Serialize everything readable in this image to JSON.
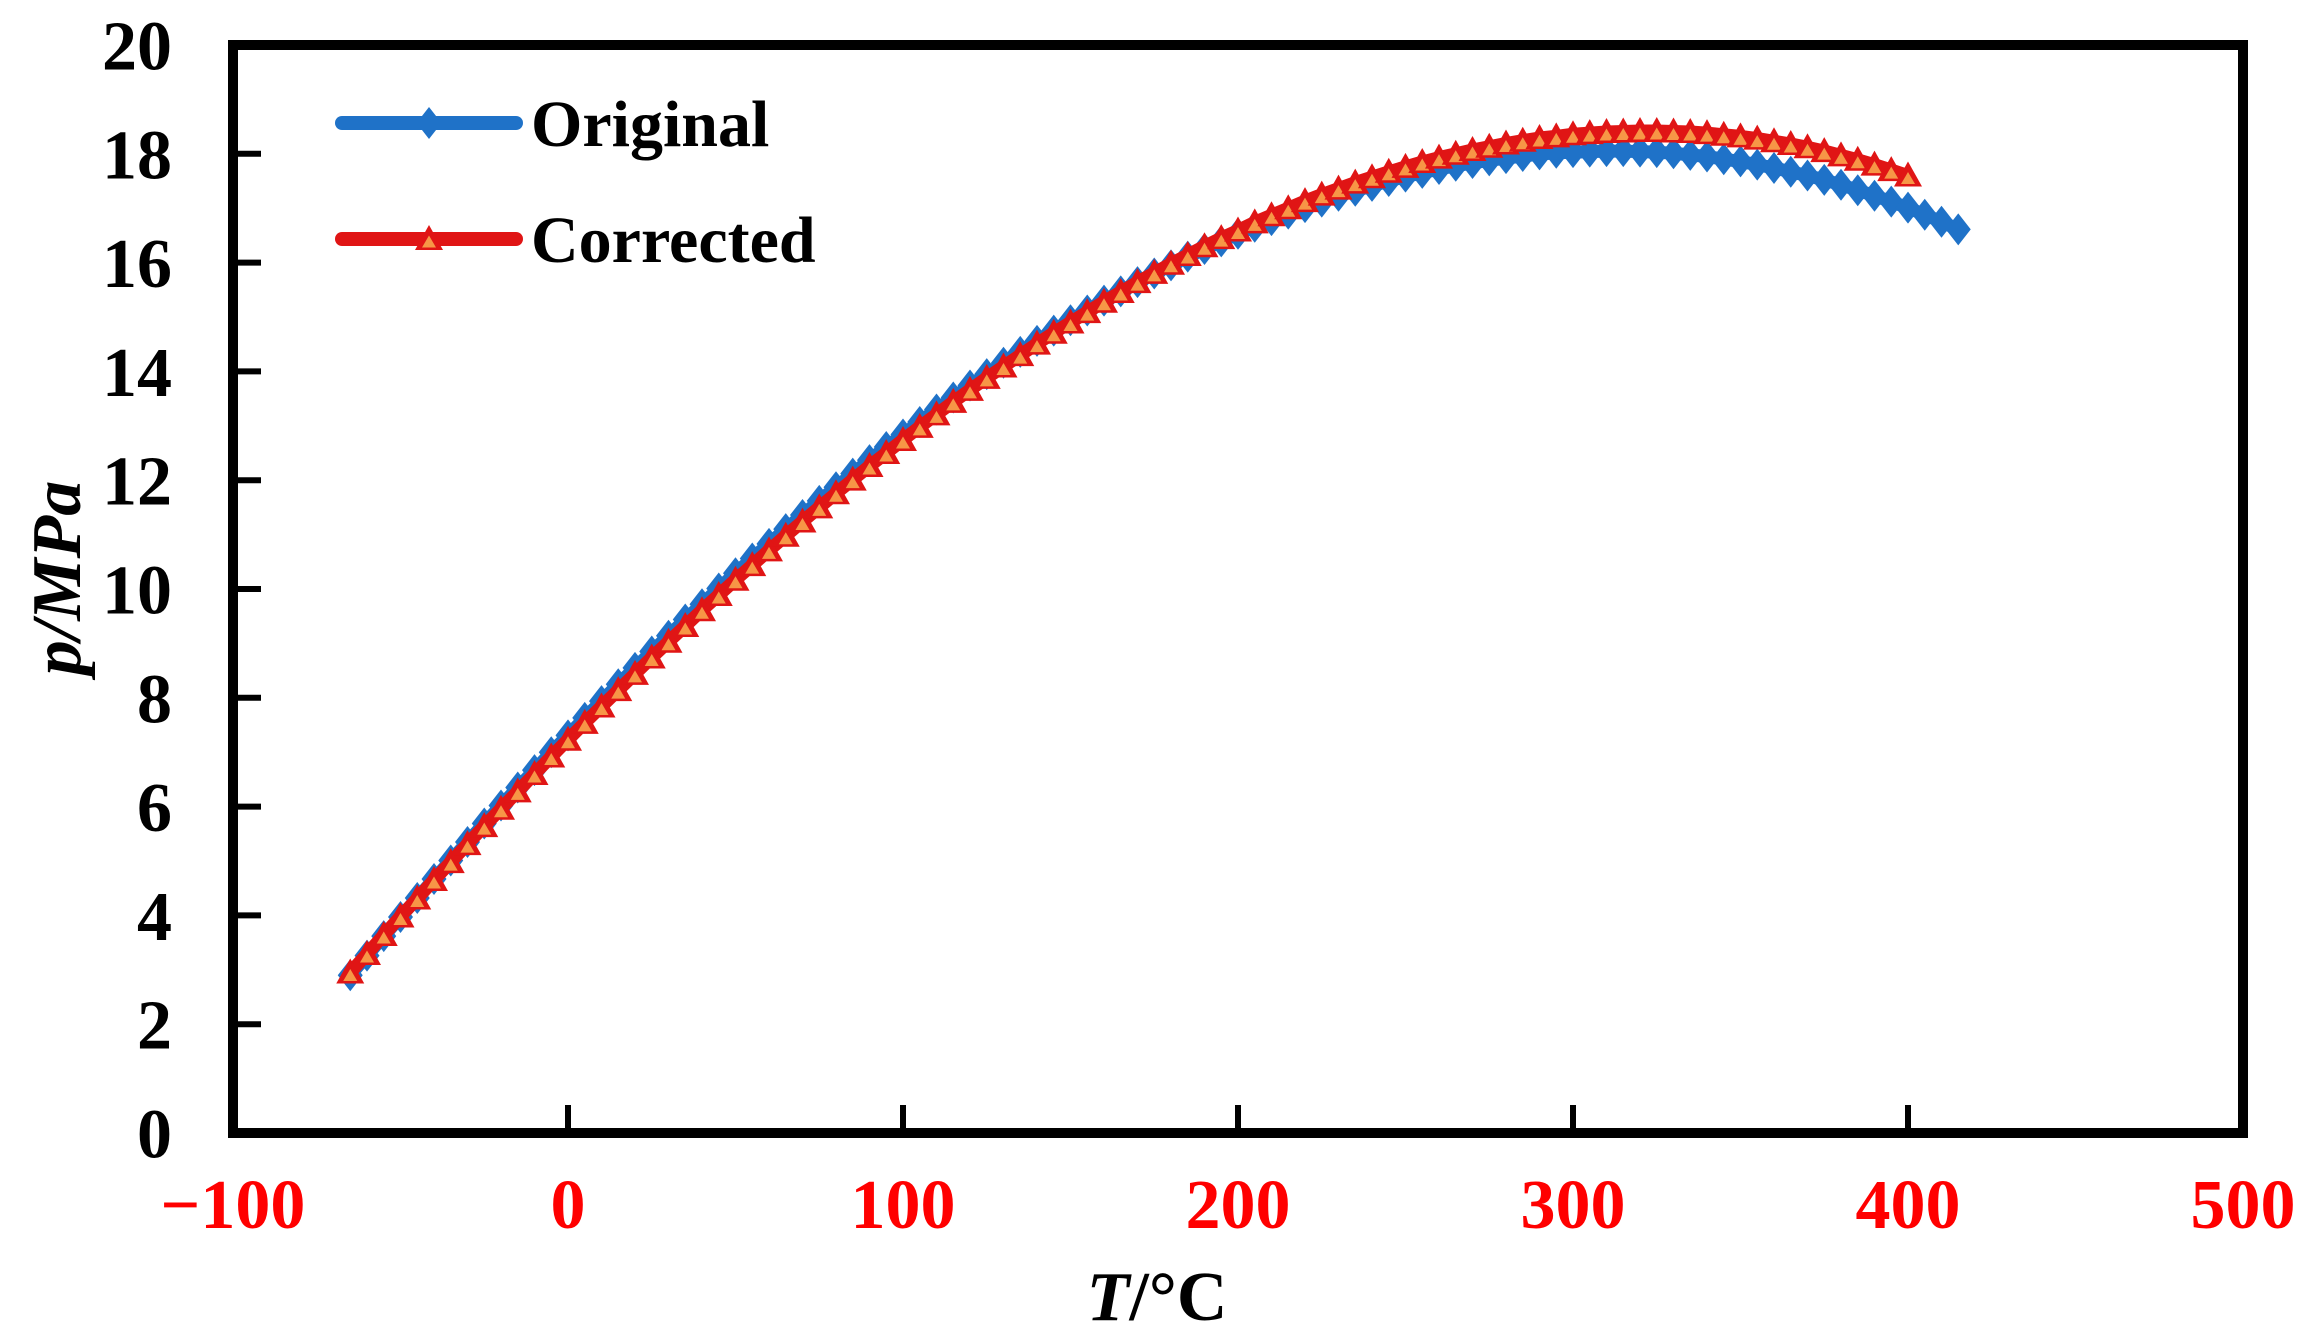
{
  "chart_data": {
    "type": "line",
    "title": "",
    "xlabel_var": "T",
    "xlabel_rest": "/°C",
    "ylabel_var": "p",
    "ylabel_rest": "/MPa",
    "xlim": [
      -100,
      500
    ],
    "ylim": [
      0,
      20
    ],
    "x_ticks": [
      -100,
      0,
      100,
      200,
      300,
      400,
      500
    ],
    "y_ticks": [
      0,
      2,
      4,
      6,
      8,
      10,
      12,
      14,
      16,
      18,
      20
    ],
    "x_tick_label_color": "#ff0000",
    "y_tick_label_color": "#000000",
    "axis_color": "#000000",
    "grid": false,
    "legend_position": "top-left-inside",
    "series": [
      {
        "name": "Original",
        "color": "#1f72c8",
        "marker": "diamond",
        "points": [
          [
            -65,
            2.9
          ],
          [
            -60,
            3.26
          ],
          [
            -55,
            3.62
          ],
          [
            -50,
            3.97
          ],
          [
            -45,
            4.32
          ],
          [
            -40,
            4.67
          ],
          [
            -35,
            5.01
          ],
          [
            -30,
            5.35
          ],
          [
            -25,
            5.69
          ],
          [
            -20,
            6.02
          ],
          [
            -15,
            6.35
          ],
          [
            -10,
            6.67
          ],
          [
            -5,
            7.0
          ],
          [
            0,
            7.31
          ],
          [
            5,
            7.63
          ],
          [
            10,
            7.94
          ],
          [
            15,
            8.25
          ],
          [
            20,
            8.55
          ],
          [
            25,
            8.85
          ],
          [
            30,
            9.14
          ],
          [
            35,
            9.44
          ],
          [
            40,
            9.72
          ],
          [
            45,
            10.01
          ],
          [
            50,
            10.29
          ],
          [
            55,
            10.56
          ],
          [
            60,
            10.83
          ],
          [
            65,
            11.1
          ],
          [
            70,
            11.36
          ],
          [
            75,
            11.62
          ],
          [
            80,
            11.87
          ],
          [
            85,
            12.12
          ],
          [
            90,
            12.37
          ],
          [
            95,
            12.61
          ],
          [
            100,
            12.84
          ],
          [
            105,
            13.07
          ],
          [
            110,
            13.3
          ],
          [
            115,
            13.52
          ],
          [
            120,
            13.74
          ],
          [
            125,
            13.95
          ],
          [
            130,
            14.16
          ],
          [
            135,
            14.36
          ],
          [
            140,
            14.56
          ],
          [
            145,
            14.75
          ],
          [
            150,
            14.94
          ],
          [
            155,
            15.12
          ],
          [
            160,
            15.3
          ],
          [
            165,
            15.47
          ],
          [
            170,
            15.64
          ],
          [
            175,
            15.8
          ],
          [
            180,
            15.95
          ],
          [
            185,
            16.11
          ],
          [
            190,
            16.25
          ],
          [
            195,
            16.39
          ],
          [
            200,
            16.53
          ],
          [
            205,
            16.66
          ],
          [
            210,
            16.78
          ],
          [
            215,
            16.9
          ],
          [
            220,
            17.02
          ],
          [
            225,
            17.12
          ],
          [
            230,
            17.23
          ],
          [
            235,
            17.32
          ],
          [
            240,
            17.41
          ],
          [
            245,
            17.5
          ],
          [
            250,
            17.58
          ],
          [
            255,
            17.65
          ],
          [
            260,
            17.72
          ],
          [
            265,
            17.78
          ],
          [
            270,
            17.83
          ],
          [
            275,
            17.88
          ],
          [
            280,
            17.92
          ],
          [
            285,
            17.96
          ],
          [
            290,
            17.99
          ],
          [
            295,
            18.02
          ],
          [
            300,
            18.03
          ],
          [
            305,
            18.04
          ],
          [
            310,
            18.05
          ],
          [
            315,
            18.05
          ],
          [
            320,
            18.04
          ],
          [
            325,
            18.03
          ],
          [
            330,
            18.01
          ],
          [
            335,
            17.98
          ],
          [
            340,
            17.95
          ],
          [
            345,
            17.9
          ],
          [
            350,
            17.86
          ],
          [
            355,
            17.8
          ],
          [
            360,
            17.74
          ],
          [
            365,
            17.67
          ],
          [
            370,
            17.6
          ],
          [
            375,
            17.52
          ],
          [
            380,
            17.43
          ],
          [
            385,
            17.33
          ],
          [
            390,
            17.23
          ],
          [
            395,
            17.12
          ],
          [
            400,
            17.01
          ],
          [
            405,
            16.88
          ],
          [
            410,
            16.75
          ],
          [
            415,
            16.61
          ]
        ]
      },
      {
        "name": "Corrected",
        "color": "#e01515",
        "marker": "triangle",
        "marker_fill": "#f79646",
        "points": [
          [
            -65,
            2.95
          ],
          [
            -60,
            3.29
          ],
          [
            -55,
            3.64
          ],
          [
            -50,
            3.98
          ],
          [
            -45,
            4.31
          ],
          [
            -40,
            4.65
          ],
          [
            -35,
            4.98
          ],
          [
            -30,
            5.31
          ],
          [
            -25,
            5.64
          ],
          [
            -20,
            5.96
          ],
          [
            -15,
            6.28
          ],
          [
            -10,
            6.6
          ],
          [
            -5,
            6.92
          ],
          [
            0,
            7.23
          ],
          [
            5,
            7.54
          ],
          [
            10,
            7.84
          ],
          [
            15,
            8.14
          ],
          [
            20,
            8.44
          ],
          [
            25,
            8.74
          ],
          [
            30,
            9.03
          ],
          [
            35,
            9.32
          ],
          [
            40,
            9.61
          ],
          [
            45,
            9.89
          ],
          [
            50,
            10.17
          ],
          [
            55,
            10.44
          ],
          [
            60,
            10.71
          ],
          [
            65,
            10.98
          ],
          [
            70,
            11.24
          ],
          [
            75,
            11.5
          ],
          [
            80,
            11.76
          ],
          [
            85,
            12.01
          ],
          [
            90,
            12.26
          ],
          [
            95,
            12.5
          ],
          [
            100,
            12.74
          ],
          [
            105,
            12.98
          ],
          [
            110,
            13.21
          ],
          [
            115,
            13.44
          ],
          [
            120,
            13.66
          ],
          [
            125,
            13.88
          ],
          [
            130,
            14.09
          ],
          [
            135,
            14.3
          ],
          [
            140,
            14.51
          ],
          [
            145,
            14.71
          ],
          [
            150,
            14.9
          ],
          [
            155,
            15.09
          ],
          [
            160,
            15.28
          ],
          [
            165,
            15.46
          ],
          [
            170,
            15.64
          ],
          [
            175,
            15.81
          ],
          [
            180,
            15.98
          ],
          [
            185,
            16.14
          ],
          [
            190,
            16.3
          ],
          [
            195,
            16.45
          ],
          [
            200,
            16.59
          ],
          [
            205,
            16.74
          ],
          [
            210,
            16.87
          ],
          [
            215,
            17.0
          ],
          [
            220,
            17.13
          ],
          [
            225,
            17.25
          ],
          [
            230,
            17.36
          ],
          [
            235,
            17.47
          ],
          [
            240,
            17.57
          ],
          [
            245,
            17.67
          ],
          [
            250,
            17.76
          ],
          [
            255,
            17.85
          ],
          [
            260,
            17.93
          ],
          [
            265,
            18.0
          ],
          [
            270,
            18.07
          ],
          [
            275,
            18.13
          ],
          [
            280,
            18.19
          ],
          [
            285,
            18.24
          ],
          [
            290,
            18.29
          ],
          [
            295,
            18.32
          ],
          [
            300,
            18.36
          ],
          [
            305,
            18.38
          ],
          [
            310,
            18.4
          ],
          [
            315,
            18.41
          ],
          [
            320,
            18.42
          ],
          [
            325,
            18.42
          ],
          [
            330,
            18.41
          ],
          [
            335,
            18.4
          ],
          [
            340,
            18.38
          ],
          [
            345,
            18.35
          ],
          [
            350,
            18.32
          ],
          [
            355,
            18.28
          ],
          [
            360,
            18.23
          ],
          [
            365,
            18.18
          ],
          [
            370,
            18.12
          ],
          [
            375,
            18.05
          ],
          [
            380,
            17.97
          ],
          [
            385,
            17.89
          ],
          [
            390,
            17.8
          ],
          [
            395,
            17.7
          ],
          [
            400,
            17.6
          ]
        ]
      }
    ]
  }
}
